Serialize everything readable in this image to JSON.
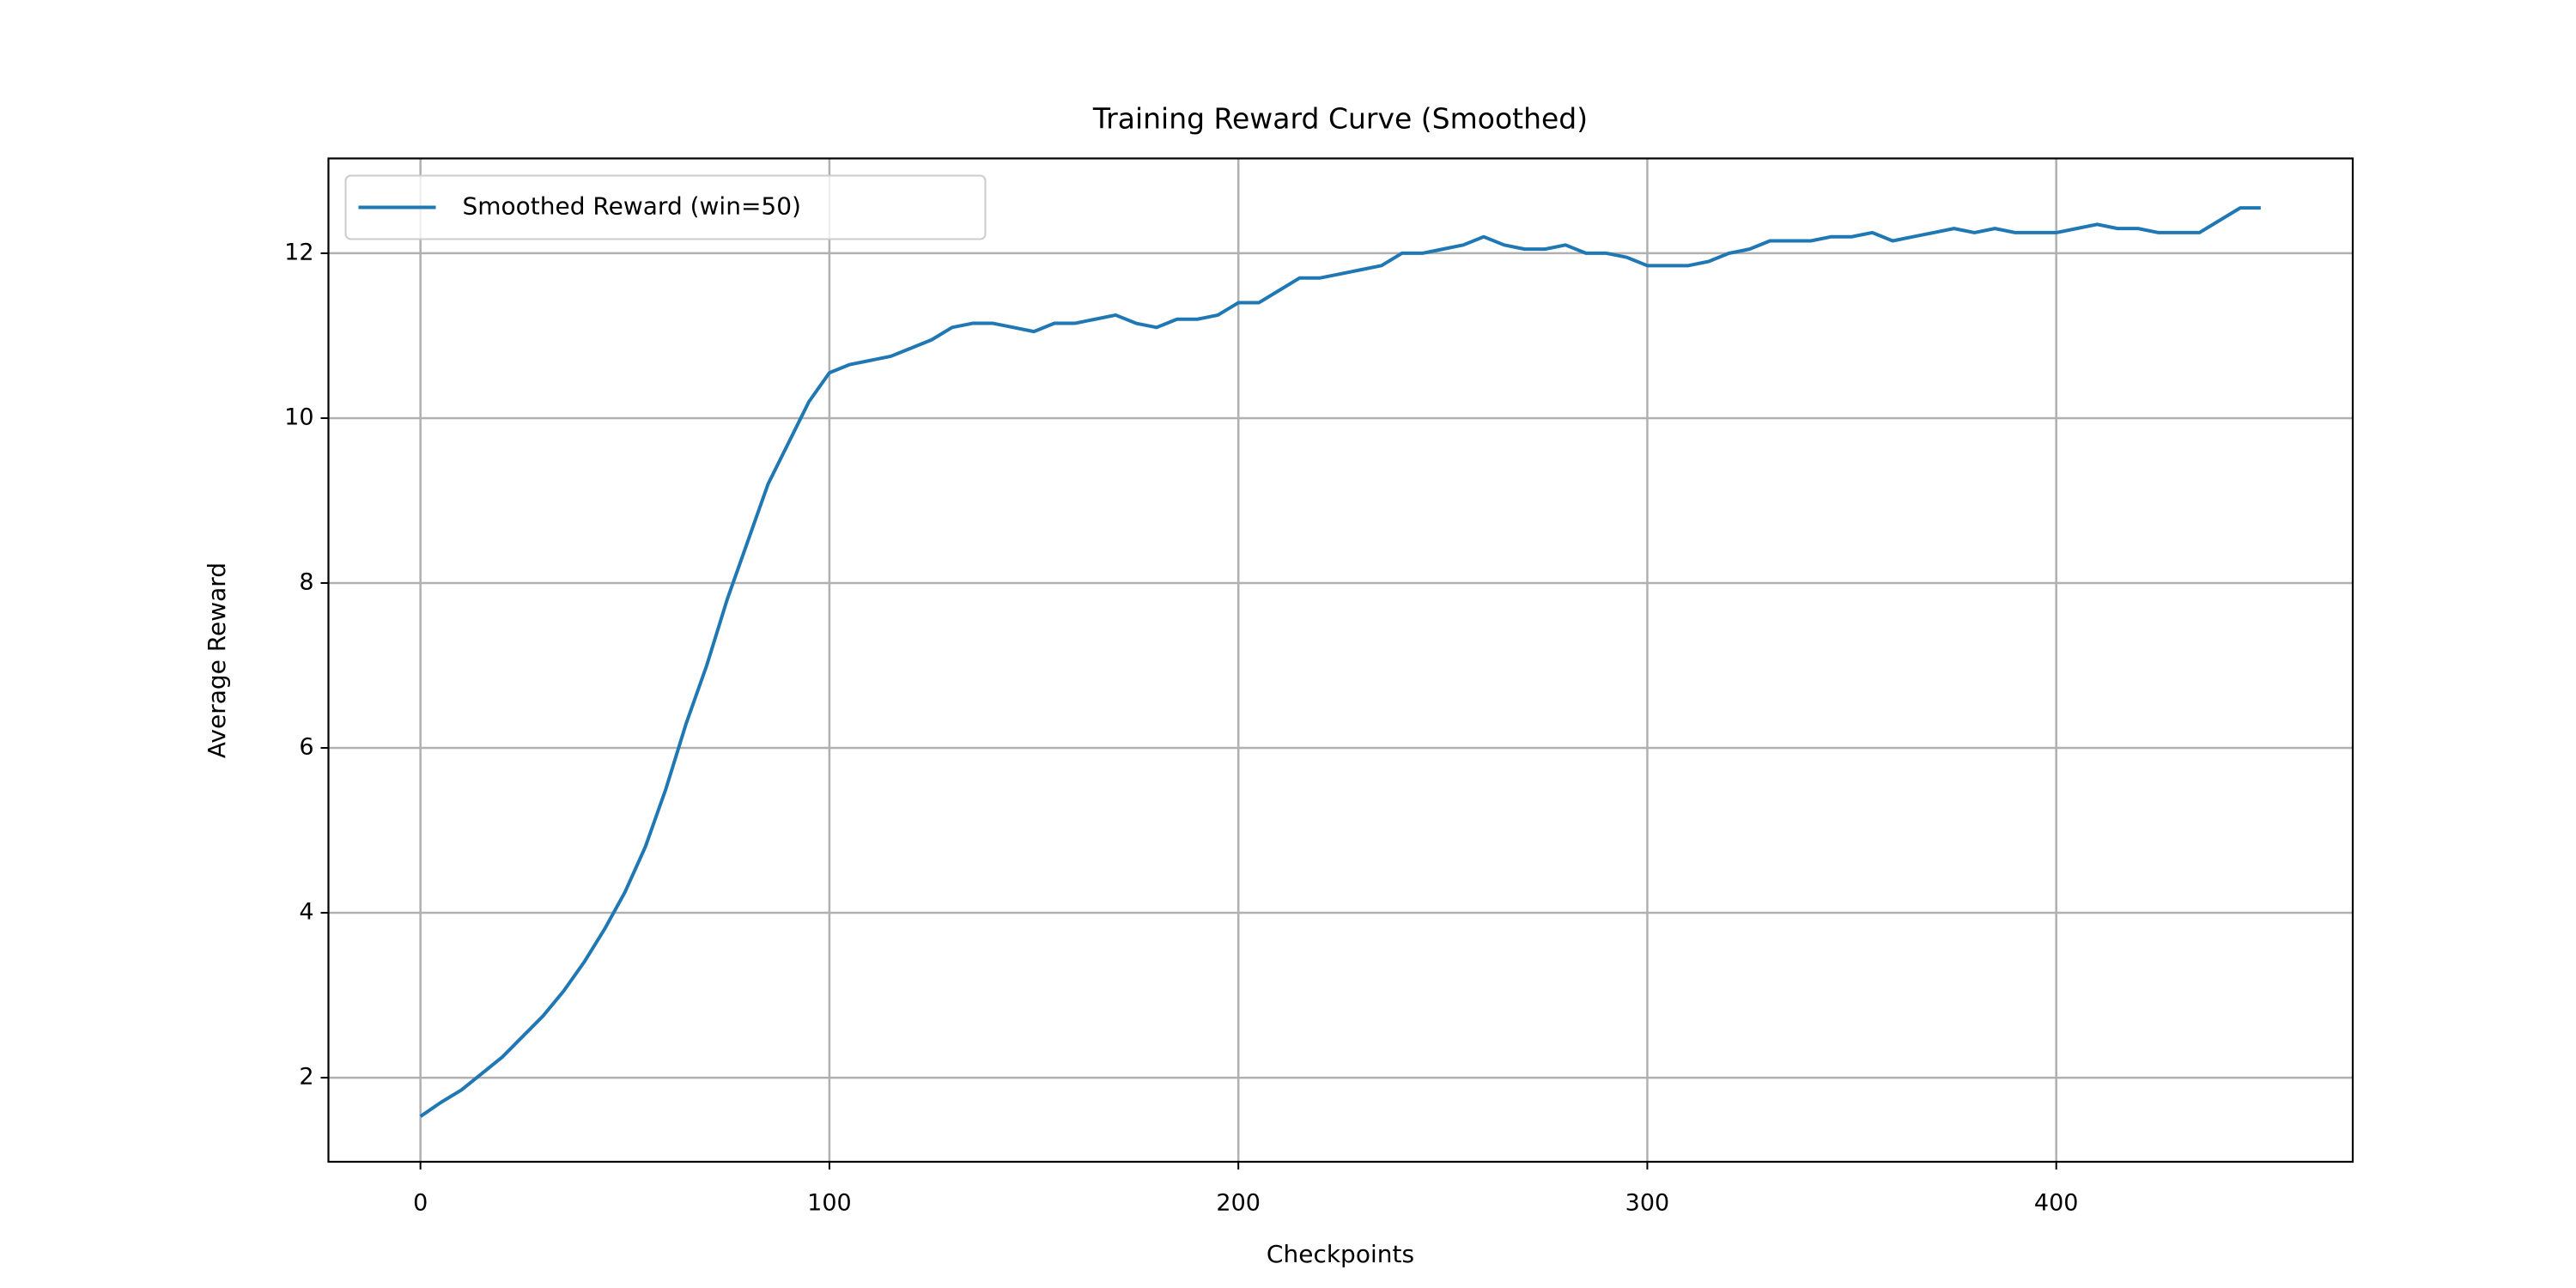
{
  "chart_data": {
    "type": "line",
    "title": "Training Reward Curve (Smoothed)",
    "x_label": "Checkpoints",
    "y_label": "Average Reward",
    "x": [
      0,
      5,
      10,
      15,
      20,
      25,
      30,
      35,
      40,
      45,
      50,
      55,
      60,
      65,
      70,
      75,
      80,
      85,
      90,
      95,
      100,
      105,
      110,
      115,
      120,
      125,
      130,
      135,
      140,
      145,
      150,
      155,
      160,
      165,
      170,
      175,
      180,
      185,
      190,
      195,
      200,
      205,
      210,
      215,
      220,
      225,
      230,
      235,
      240,
      245,
      250,
      255,
      260,
      265,
      270,
      275,
      280,
      285,
      290,
      295,
      300,
      305,
      310,
      315,
      320,
      325,
      330,
      335,
      340,
      345,
      350,
      355,
      360,
      365,
      370,
      375,
      380,
      385,
      390,
      395,
      400,
      405,
      410,
      415,
      420,
      425,
      430,
      435,
      440,
      445,
      450
    ],
    "series": [
      {
        "name": "Smoothed Reward (win=50)",
        "color": "#1f77b4",
        "values": [
          1.53,
          1.7,
          1.85,
          2.05,
          2.25,
          2.5,
          2.75,
          3.05,
          3.4,
          3.8,
          4.25,
          4.8,
          5.5,
          6.3,
          7.0,
          7.8,
          8.5,
          9.2,
          9.7,
          10.2,
          10.55,
          10.65,
          10.7,
          10.75,
          10.85,
          10.95,
          11.1,
          11.15,
          11.15,
          11.1,
          11.05,
          11.15,
          11.15,
          11.2,
          11.25,
          11.15,
          11.1,
          11.2,
          11.2,
          11.25,
          11.4,
          11.4,
          11.55,
          11.7,
          11.7,
          11.75,
          11.8,
          11.85,
          12.0,
          12.0,
          12.05,
          12.1,
          12.2,
          12.1,
          12.05,
          12.05,
          12.1,
          12.0,
          12.0,
          11.95,
          11.85,
          11.85,
          11.85,
          11.9,
          12.0,
          12.05,
          12.15,
          12.15,
          12.15,
          12.2,
          12.2,
          12.25,
          12.15,
          12.2,
          12.25,
          12.3,
          12.25,
          12.3,
          12.25,
          12.25,
          12.25,
          12.3,
          12.35,
          12.3,
          12.3,
          12.25,
          12.25,
          12.25,
          12.4,
          12.55,
          12.55
        ]
      }
    ],
    "xlim": [
      -22.5,
      472.5
    ],
    "xticks": [
      0,
      100,
      200,
      300,
      400
    ],
    "ylim": [
      0.98,
      13.15
    ],
    "yticks": [
      2,
      4,
      6,
      8,
      10,
      12
    ],
    "grid": true,
    "legend": "upper left"
  }
}
